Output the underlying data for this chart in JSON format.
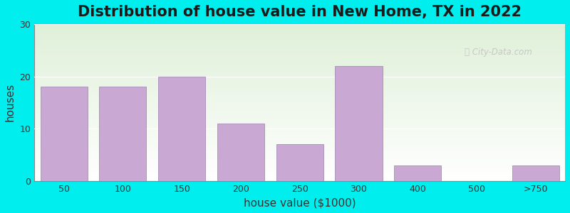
{
  "title": "Distribution of house value in New Home, TX in 2022",
  "xlabel": "house value ($1000)",
  "ylabel": "houses",
  "categories": [
    "50",
    "100",
    "150",
    "200",
    "250",
    "300",
    "400",
    "500",
    ">750"
  ],
  "values": [
    18,
    18,
    20,
    11,
    7,
    22,
    3,
    0,
    3
  ],
  "bar_color": "#C9A8D4",
  "bar_edgecolor": "#9B7FB0",
  "ylim": [
    0,
    30
  ],
  "yticks": [
    0,
    10,
    20,
    30
  ],
  "bg_outer": "#00EEEE",
  "bg_inner_top": "#dff0d8",
  "bg_inner_bottom": "#ffffff",
  "title_fontsize": 15,
  "axis_label_fontsize": 11,
  "tick_fontsize": 9,
  "bar_width": 0.8
}
